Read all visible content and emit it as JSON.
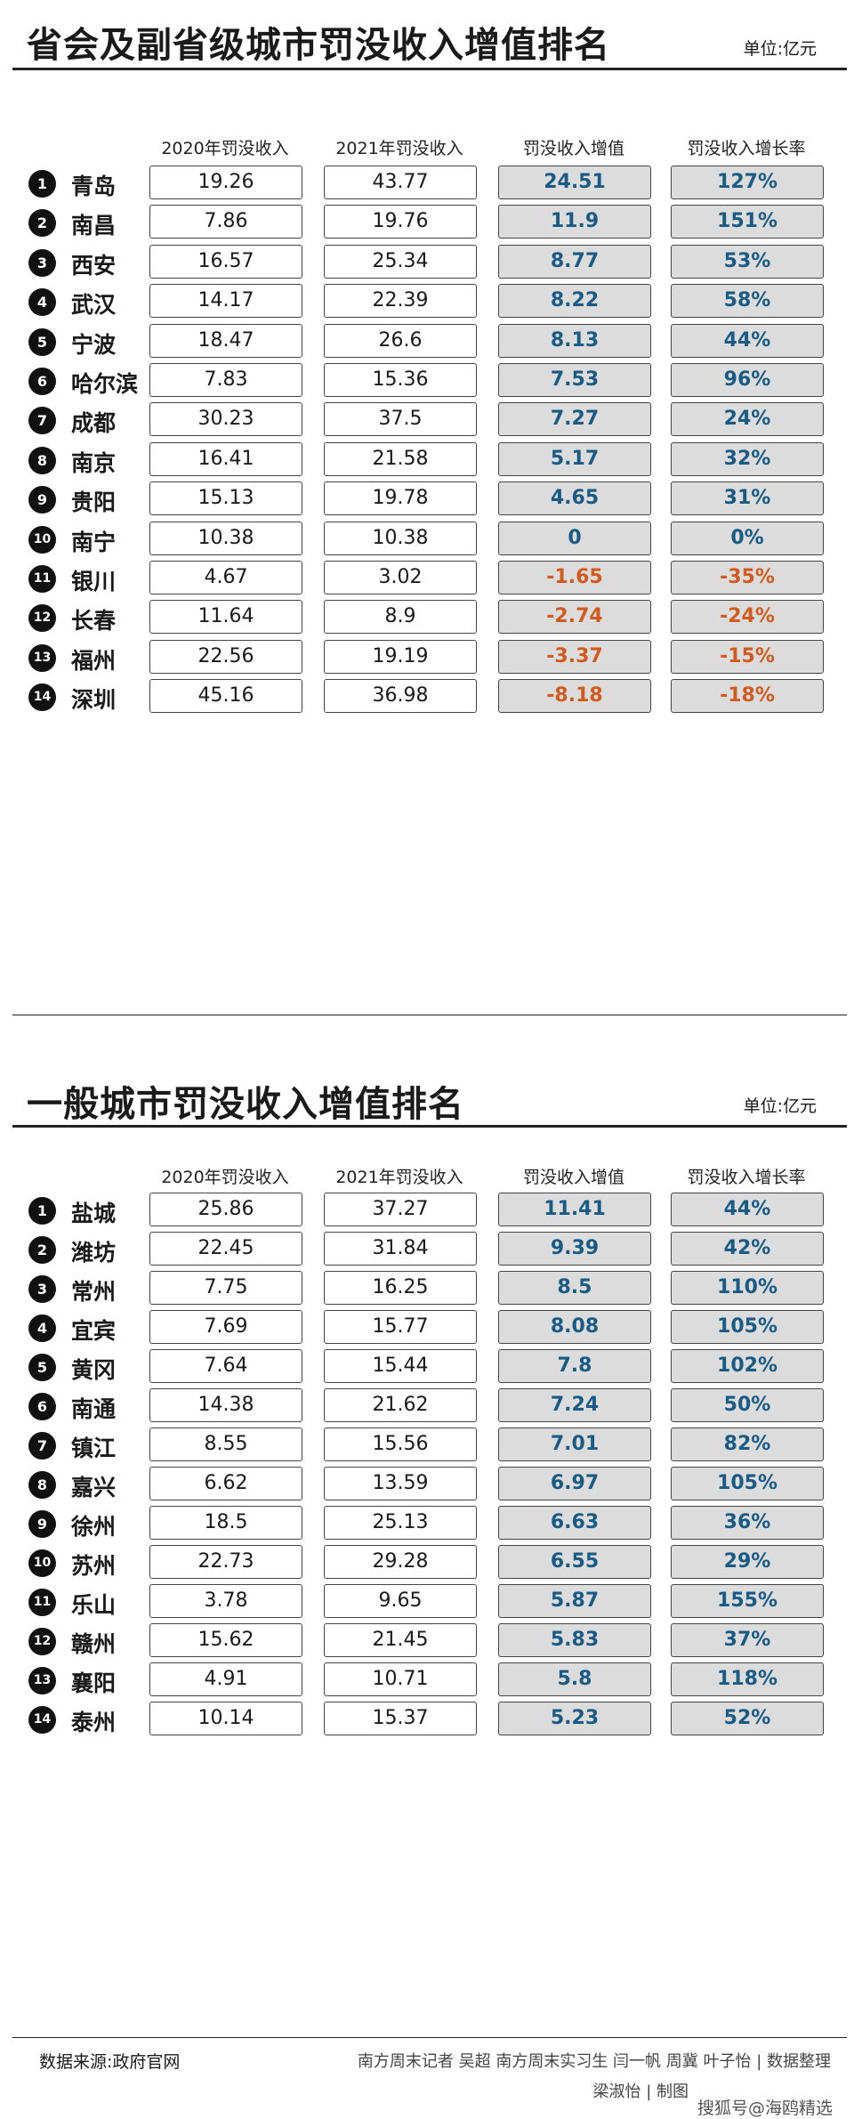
{
  "section1": {
    "title": "省会及副省级城市罚没收入增值排名",
    "unit": "单位:亿元",
    "headers": [
      "2020年罚没收入",
      "2021年罚没收入",
      "罚没收入增值",
      "罚没收入增长率"
    ]
  },
  "section2": {
    "title": "一般城市罚没收入增值排名",
    "unit": "单位:亿元",
    "headers": [
      "2020年罚没收入",
      "2021年罚没收入",
      "罚没收入增值",
      "罚没收入增长率"
    ]
  },
  "chart_data": [
    {
      "type": "table",
      "title": "省会及副省级城市罚没收入增值排名",
      "columns": [
        "2020年罚没收入",
        "2021年罚没收入",
        "罚没收入增值",
        "罚没收入增长率"
      ],
      "rows": [
        {
          "rank": "1",
          "city": "青岛",
          "v2020": "19.26",
          "v2021": "43.77",
          "increase": "24.51",
          "rate": "127%"
        },
        {
          "rank": "2",
          "city": "南昌",
          "v2020": "7.86",
          "v2021": "19.76",
          "increase": "11.9",
          "rate": "151%"
        },
        {
          "rank": "3",
          "city": "西安",
          "v2020": "16.57",
          "v2021": "25.34",
          "increase": "8.77",
          "rate": "53%"
        },
        {
          "rank": "4",
          "city": "武汉",
          "v2020": "14.17",
          "v2021": "22.39",
          "increase": "8.22",
          "rate": "58%"
        },
        {
          "rank": "5",
          "city": "宁波",
          "v2020": "18.47",
          "v2021": "26.6",
          "increase": "8.13",
          "rate": "44%"
        },
        {
          "rank": "6",
          "city": "哈尔滨",
          "v2020": "7.83",
          "v2021": "15.36",
          "increase": "7.53",
          "rate": "96%"
        },
        {
          "rank": "7",
          "city": "成都",
          "v2020": "30.23",
          "v2021": "37.5",
          "increase": "7.27",
          "rate": "24%"
        },
        {
          "rank": "8",
          "city": "南京",
          "v2020": "16.41",
          "v2021": "21.58",
          "increase": "5.17",
          "rate": "32%"
        },
        {
          "rank": "9",
          "city": "贵阳",
          "v2020": "15.13",
          "v2021": "19.78",
          "increase": "4.65",
          "rate": "31%"
        },
        {
          "rank": "10",
          "city": "南宁",
          "v2020": "10.38",
          "v2021": "10.38",
          "increase": "0",
          "rate": "0%"
        },
        {
          "rank": "11",
          "city": "银川",
          "v2020": "4.67",
          "v2021": "3.02",
          "increase": "-1.65",
          "rate": "-35%"
        },
        {
          "rank": "12",
          "city": "长春",
          "v2020": "11.64",
          "v2021": "8.9",
          "increase": "-2.74",
          "rate": "-24%"
        },
        {
          "rank": "13",
          "city": "福州",
          "v2020": "22.56",
          "v2021": "19.19",
          "increase": "-3.37",
          "rate": "-15%"
        },
        {
          "rank": "14",
          "city": "深圳",
          "v2020": "45.16",
          "v2021": "36.98",
          "increase": "-8.18",
          "rate": "-18%"
        }
      ]
    },
    {
      "type": "table",
      "title": "一般城市罚没收入增值排名",
      "columns": [
        "2020年罚没收入",
        "2021年罚没收入",
        "罚没收入增值",
        "罚没收入增长率"
      ],
      "rows": [
        {
          "rank": "1",
          "city": "盐城",
          "v2020": "25.86",
          "v2021": "37.27",
          "increase": "11.41",
          "rate": "44%"
        },
        {
          "rank": "2",
          "city": "潍坊",
          "v2020": "22.45",
          "v2021": "31.84",
          "increase": "9.39",
          "rate": "42%"
        },
        {
          "rank": "3",
          "city": "常州",
          "v2020": "7.75",
          "v2021": "16.25",
          "increase": "8.5",
          "rate": "110%"
        },
        {
          "rank": "4",
          "city": "宜宾",
          "v2020": "7.69",
          "v2021": "15.77",
          "increase": "8.08",
          "rate": "105%"
        },
        {
          "rank": "5",
          "city": "黄冈",
          "v2020": "7.64",
          "v2021": "15.44",
          "increase": "7.8",
          "rate": "102%"
        },
        {
          "rank": "6",
          "city": "南通",
          "v2020": "14.38",
          "v2021": "21.62",
          "increase": "7.24",
          "rate": "50%"
        },
        {
          "rank": "7",
          "city": "镇江",
          "v2020": "8.55",
          "v2021": "15.56",
          "increase": "7.01",
          "rate": "82%"
        },
        {
          "rank": "8",
          "city": "嘉兴",
          "v2020": "6.62",
          "v2021": "13.59",
          "increase": "6.97",
          "rate": "105%"
        },
        {
          "rank": "9",
          "city": "徐州",
          "v2020": "18.5",
          "v2021": "25.13",
          "increase": "6.63",
          "rate": "36%"
        },
        {
          "rank": "10",
          "city": "苏州",
          "v2020": "22.73",
          "v2021": "29.28",
          "increase": "6.55",
          "rate": "29%"
        },
        {
          "rank": "11",
          "city": "乐山",
          "v2020": "3.78",
          "v2021": "9.65",
          "increase": "5.87",
          "rate": "155%"
        },
        {
          "rank": "12",
          "city": "赣州",
          "v2020": "15.62",
          "v2021": "21.45",
          "increase": "5.83",
          "rate": "37%"
        },
        {
          "rank": "13",
          "city": "襄阳",
          "v2020": "4.91",
          "v2021": "10.71",
          "increase": "5.8",
          "rate": "118%"
        },
        {
          "rank": "14",
          "city": "泰州",
          "v2020": "10.14",
          "v2021": "15.37",
          "increase": "5.23",
          "rate": "52%"
        }
      ]
    }
  ],
  "footer": {
    "source": "数据来源:政府官网",
    "credits": "南方周末记者 吴超 南方周末实习生 闫一帆 周冀 叶子怡 | 数据整理",
    "credits2": "梁淑怡 | 制图",
    "watermark": "搜狐号@海鸥精选"
  },
  "colors": {
    "positive_text": "#1a5b86",
    "negative_text": "#d25a1e",
    "highlight_box": "#dcdcdc"
  }
}
